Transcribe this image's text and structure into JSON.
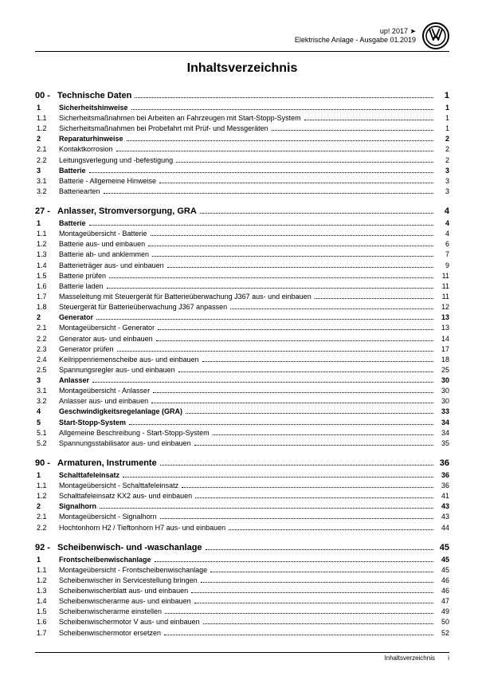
{
  "header": {
    "line1": "up! 2017 ➤",
    "line2": "Elektrische Anlage - Ausgabe 01.2019"
  },
  "title": "Inhaltsverzeichnis",
  "footer": {
    "label": "Inhaltsverzeichnis",
    "page": "i"
  },
  "entries": [
    {
      "lvl": 0,
      "num": "00 -",
      "label": "Technische Daten",
      "page": "1"
    },
    {
      "lvl": 1,
      "num": "1",
      "label": "Sicherheitshinweise",
      "page": "1"
    },
    {
      "lvl": 2,
      "num": "1.1",
      "label": "Sicherheitsmaßnahmen bei Arbeiten an Fahrzeugen mit Start-Stopp-System",
      "page": "1"
    },
    {
      "lvl": 2,
      "num": "1.2",
      "label": "Sicherheitsmaßnahmen bei Probefahrt mit Prüf- und Messgeräten",
      "page": "1"
    },
    {
      "lvl": 1,
      "num": "2",
      "label": "Reparaturhinweise",
      "page": "2"
    },
    {
      "lvl": 2,
      "num": "2.1",
      "label": "Kontaktkorrosion",
      "page": "2"
    },
    {
      "lvl": 2,
      "num": "2.2",
      "label": "Leitungsverlegung und -befestigung",
      "page": "2"
    },
    {
      "lvl": 1,
      "num": "3",
      "label": "Batterie",
      "page": "3"
    },
    {
      "lvl": 2,
      "num": "3.1",
      "label": "Batterie - Allgemeine Hinweise",
      "page": "3"
    },
    {
      "lvl": 2,
      "num": "3.2",
      "label": "Batteriearten",
      "page": "3"
    },
    {
      "lvl": 0,
      "num": "27 -",
      "label": "Anlasser, Stromversorgung, GRA",
      "page": "4"
    },
    {
      "lvl": 1,
      "num": "1",
      "label": "Batterie",
      "page": "4"
    },
    {
      "lvl": 2,
      "num": "1.1",
      "label": "Montageübersicht - Batterie",
      "page": "4"
    },
    {
      "lvl": 2,
      "num": "1.2",
      "label": "Batterie aus- und einbauen",
      "page": "6"
    },
    {
      "lvl": 2,
      "num": "1.3",
      "label": "Batterie ab- und anklemmen",
      "page": "7"
    },
    {
      "lvl": 2,
      "num": "1.4",
      "label": "Batterieträger aus- und einbauen",
      "page": "9"
    },
    {
      "lvl": 2,
      "num": "1.5",
      "label": "Batterie prüfen",
      "page": "11"
    },
    {
      "lvl": 2,
      "num": "1.6",
      "label": "Batterie laden",
      "page": "11"
    },
    {
      "lvl": 2,
      "num": "1.7",
      "label": "Masseleitung mit Steuergerät für Batterieüberwachung J367 aus- und einbauen",
      "page": "11"
    },
    {
      "lvl": 2,
      "num": "1.8",
      "label": "Steuergerät für Batterieüberwachung J367 anpassen",
      "page": "12"
    },
    {
      "lvl": 1,
      "num": "2",
      "label": "Generator",
      "page": "13"
    },
    {
      "lvl": 2,
      "num": "2.1",
      "label": "Montageübersicht - Generator",
      "page": "13"
    },
    {
      "lvl": 2,
      "num": "2.2",
      "label": "Generator aus- und einbauen",
      "page": "14"
    },
    {
      "lvl": 2,
      "num": "2.3",
      "label": "Generator prüfen",
      "page": "17"
    },
    {
      "lvl": 2,
      "num": "2.4",
      "label": "Keilrippenriemenscheibe aus- und einbauen",
      "page": "18"
    },
    {
      "lvl": 2,
      "num": "2.5",
      "label": "Spannungsregler aus- und einbauen",
      "page": "25"
    },
    {
      "lvl": 1,
      "num": "3",
      "label": "Anlasser",
      "page": "30"
    },
    {
      "lvl": 2,
      "num": "3.1",
      "label": "Montageübersicht - Anlasser",
      "page": "30"
    },
    {
      "lvl": 2,
      "num": "3.2",
      "label": "Anlasser aus- und einbauen",
      "page": "30"
    },
    {
      "lvl": 1,
      "num": "4",
      "label": "Geschwindigkeitsregelanlage (GRA)",
      "page": "33"
    },
    {
      "lvl": 1,
      "num": "5",
      "label": "Start-Stopp-System",
      "page": "34"
    },
    {
      "lvl": 2,
      "num": "5.1",
      "label": "Allgemeine Beschreibung - Start-Stopp-System",
      "page": "34"
    },
    {
      "lvl": 2,
      "num": "5.2",
      "label": "Spannungsstabilisator aus- und einbauen",
      "page": "35"
    },
    {
      "lvl": 0,
      "num": "90 -",
      "label": "Armaturen, Instrumente",
      "page": "36"
    },
    {
      "lvl": 1,
      "num": "1",
      "label": "Schalttafeleinsatz",
      "page": "36"
    },
    {
      "lvl": 2,
      "num": "1.1",
      "label": "Montageübersicht - Schalttafeleinsatz",
      "page": "36"
    },
    {
      "lvl": 2,
      "num": "1.2",
      "label": "Schalttafeleinsatz KX2 aus- und einbauen",
      "page": "41"
    },
    {
      "lvl": 1,
      "num": "2",
      "label": "Signalhorn",
      "page": "43"
    },
    {
      "lvl": 2,
      "num": "2.1",
      "label": "Montageübersicht - Signalhorn",
      "page": "43"
    },
    {
      "lvl": 2,
      "num": "2.2",
      "label": "Hochtonhorn H2 / Tieftonhorn H7 aus- und einbauen",
      "page": "44"
    },
    {
      "lvl": 0,
      "num": "92 -",
      "label": "Scheibenwisch- und -waschanlage",
      "page": "45"
    },
    {
      "lvl": 1,
      "num": "1",
      "label": "Frontscheibenwischanlage",
      "page": "45"
    },
    {
      "lvl": 2,
      "num": "1.1",
      "label": "Montageübersicht - Frontscheibenwischanlage",
      "page": "45"
    },
    {
      "lvl": 2,
      "num": "1.2",
      "label": "Scheibenwischer in Servicestellung bringen",
      "page": "46"
    },
    {
      "lvl": 2,
      "num": "1.3",
      "label": "Scheibenwischerblatt aus- und einbauen",
      "page": "46"
    },
    {
      "lvl": 2,
      "num": "1.4",
      "label": "Scheibenwischerarme aus- und einbauen",
      "page": "47"
    },
    {
      "lvl": 2,
      "num": "1.5",
      "label": "Scheibenwischerarme einstellen",
      "page": "49"
    },
    {
      "lvl": 2,
      "num": "1.6",
      "label": "Scheibenwischermotor V aus- und einbauen",
      "page": "50"
    },
    {
      "lvl": 2,
      "num": "1.7",
      "label": "Scheibenwischermotor ersetzen",
      "page": "52"
    }
  ]
}
